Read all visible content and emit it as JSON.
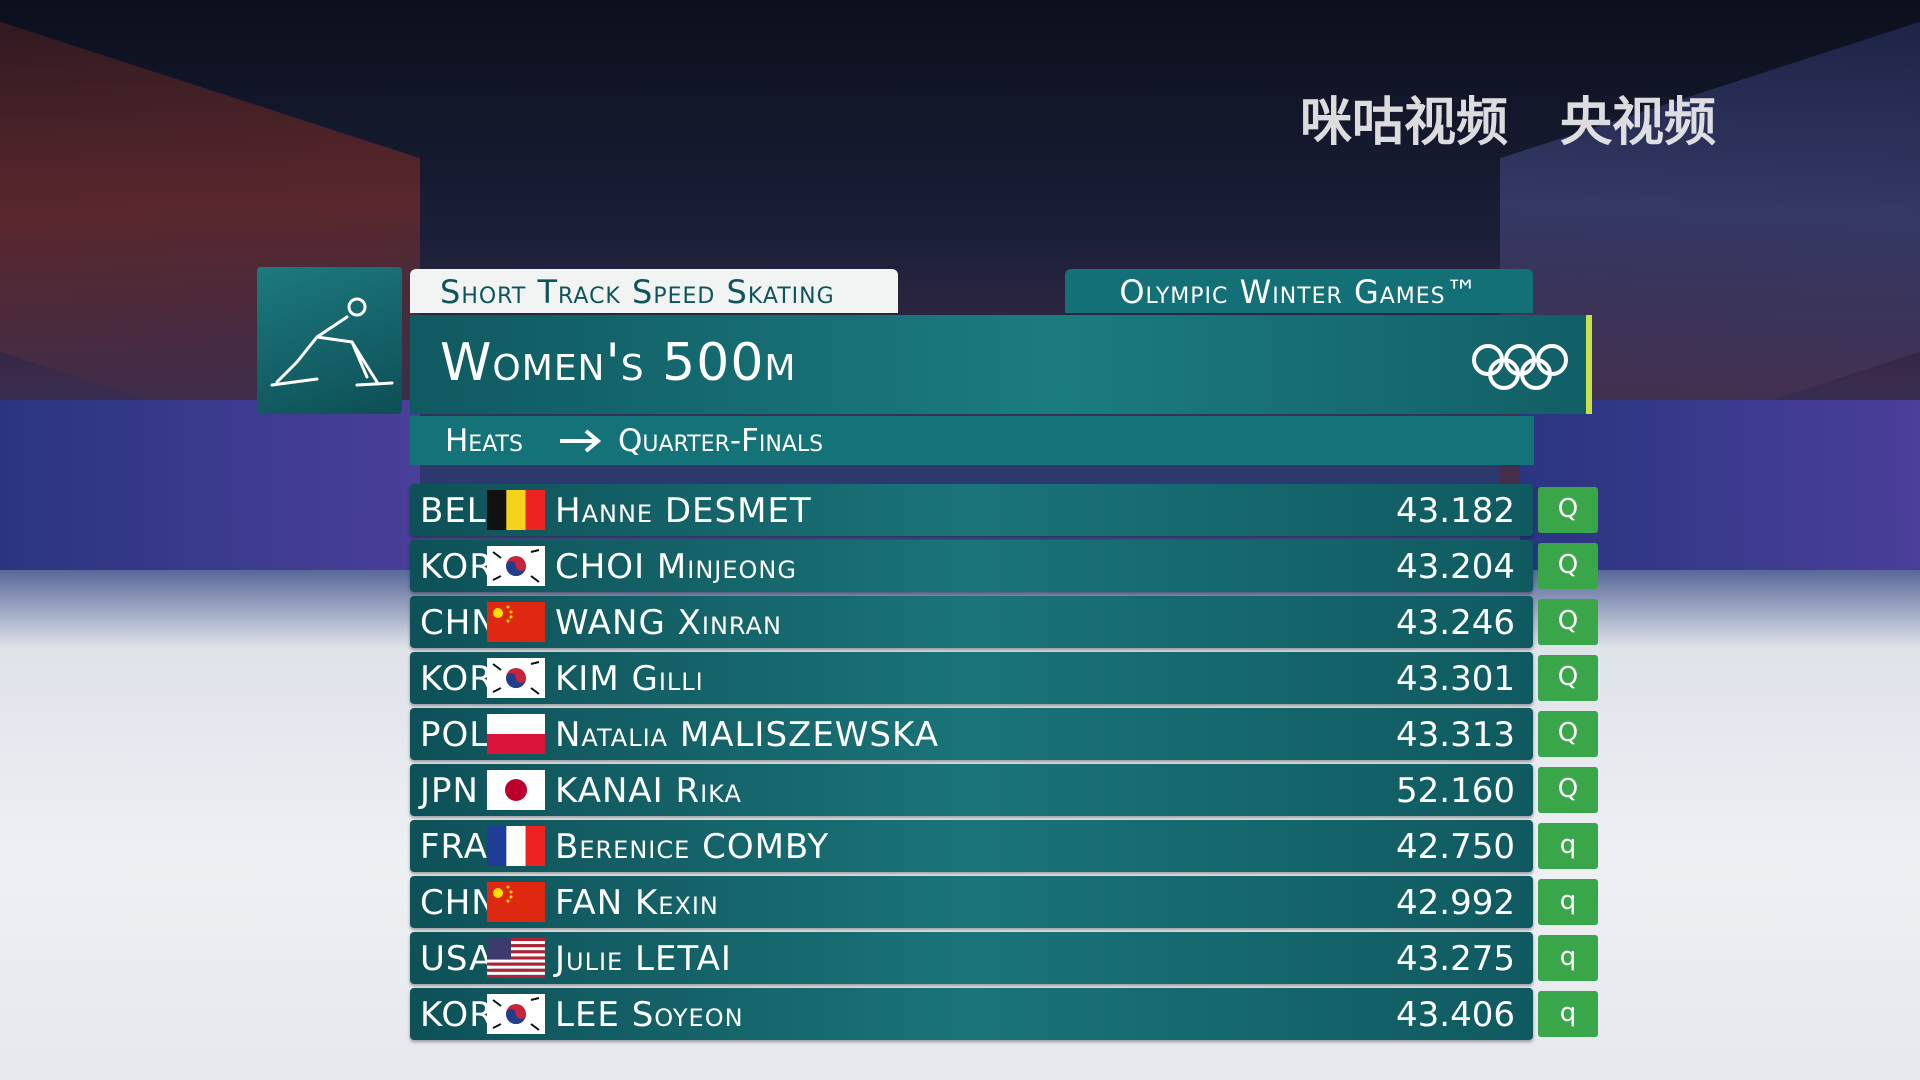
{
  "header": {
    "discipline": "Short Track Speed Skating",
    "games": "Olympic Winter Games™",
    "event": "Women's 500m",
    "stage_from": "Heats",
    "stage_to": "Quarter-Finals"
  },
  "watermarks": [
    "咪咕视频",
    "央视频"
  ],
  "table": {
    "rows": [
      [
        "BEL",
        "Hanne DESMET",
        "43.182",
        "Q"
      ],
      [
        "KOR",
        "CHOI Minjeong",
        "43.204",
        "Q"
      ],
      [
        "CHN",
        "WANG Xinran",
        "43.246",
        "Q"
      ],
      [
        "KOR",
        "KIM Gilli",
        "43.301",
        "Q"
      ],
      [
        "POL",
        "Natalia MALISZEWSKA",
        "43.313",
        "Q"
      ],
      [
        "JPN",
        "KANAI Rika",
        "52.160",
        "Q"
      ],
      [
        "FRA",
        "Berenice COMBY",
        "42.750",
        "q"
      ],
      [
        "CHN",
        "FAN Kexin",
        "42.992",
        "q"
      ],
      [
        "USA",
        "Julie LETAI",
        "43.275",
        "q"
      ],
      [
        "KOR",
        "LEE Soyeon",
        "43.406",
        "q"
      ]
    ]
  }
}
